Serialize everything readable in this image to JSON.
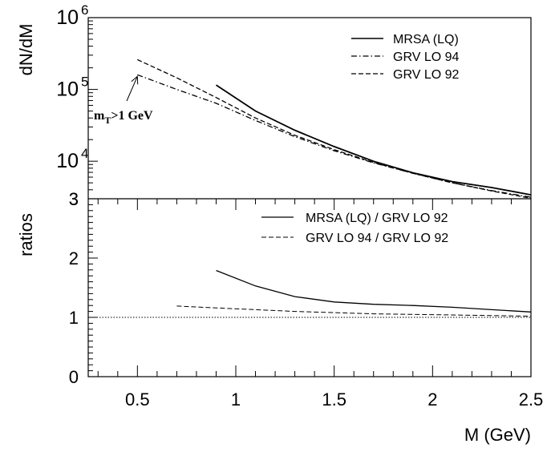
{
  "chart_data": [
    {
      "type": "line",
      "panel": "top",
      "ylabel": "dN/dM",
      "yscale": "log",
      "ylim": [
        3000,
        1000000
      ],
      "xlim": [
        0.25,
        2.5
      ],
      "ytick_labels": [
        {
          "base": "10",
          "exp": "6",
          "value": 1000000
        },
        {
          "base": "10",
          "exp": "5",
          "value": 100000
        },
        {
          "base": "10",
          "exp": "4",
          "value": 10000
        },
        {
          "base": "3",
          "exp": "",
          "value": 3000
        }
      ],
      "legend_position": "top-right",
      "annotation": {
        "main": "m",
        "sub": "T",
        "rest": ">1 GeV",
        "arrow_to": {
          "x": 0.5,
          "y": 160000
        }
      },
      "series": [
        {
          "name": "MRSA (LQ)",
          "dash": "solid",
          "x": [
            0.9,
            1.1,
            1.3,
            1.5,
            1.7,
            1.9,
            2.1,
            2.3,
            2.5
          ],
          "y": [
            115000,
            50000,
            27000,
            16000,
            10000,
            6900,
            5200,
            4300,
            3400
          ]
        },
        {
          "name": "GRV LO 94",
          "dash": "dashdot",
          "x": [
            0.5,
            0.7,
            0.9,
            1.1,
            1.3,
            1.5,
            1.7,
            1.9,
            2.1,
            2.3,
            2.5
          ],
          "y": [
            160000,
            100000,
            64000,
            37000,
            22000,
            14000,
            9500,
            6800,
            5000,
            3900,
            3150
          ]
        },
        {
          "name": "GRV LO 92",
          "dash": "dashed",
          "x": [
            0.5,
            0.7,
            0.9,
            1.1,
            1.3,
            1.5,
            1.7,
            1.9,
            2.1,
            2.3,
            2.5
          ],
          "y": [
            260000,
            145000,
            77000,
            40000,
            23000,
            14500,
            9600,
            6800,
            5000,
            3850,
            3050
          ]
        }
      ]
    },
    {
      "type": "line",
      "panel": "bottom",
      "xlabel": "M (GeV)",
      "ylabel": "ratios",
      "ylim": [
        0,
        3
      ],
      "xlim": [
        0.25,
        2.5
      ],
      "yticks": [
        0,
        1,
        2,
        3
      ],
      "xticks": [
        0.5,
        1,
        1.5,
        2,
        2.5
      ],
      "legend_position": "top-right",
      "reference_line": {
        "y": 1,
        "style": "dotted"
      },
      "series": [
        {
          "name": "MRSA (LQ) / GRV LO 92",
          "dash": "solid",
          "x": [
            0.9,
            1.1,
            1.3,
            1.5,
            1.7,
            1.9,
            2.1,
            2.3,
            2.5
          ],
          "y": [
            1.79,
            1.53,
            1.35,
            1.26,
            1.22,
            1.2,
            1.17,
            1.13,
            1.09
          ]
        },
        {
          "name": "GRV LO 94 / GRV LO 92",
          "dash": "dashed",
          "x": [
            0.7,
            0.9,
            1.1,
            1.3,
            1.5,
            1.7,
            1.9,
            2.1,
            2.3,
            2.5
          ],
          "y": [
            1.19,
            1.16,
            1.13,
            1.1,
            1.08,
            1.06,
            1.05,
            1.04,
            1.03,
            1.02
          ]
        }
      ]
    }
  ]
}
